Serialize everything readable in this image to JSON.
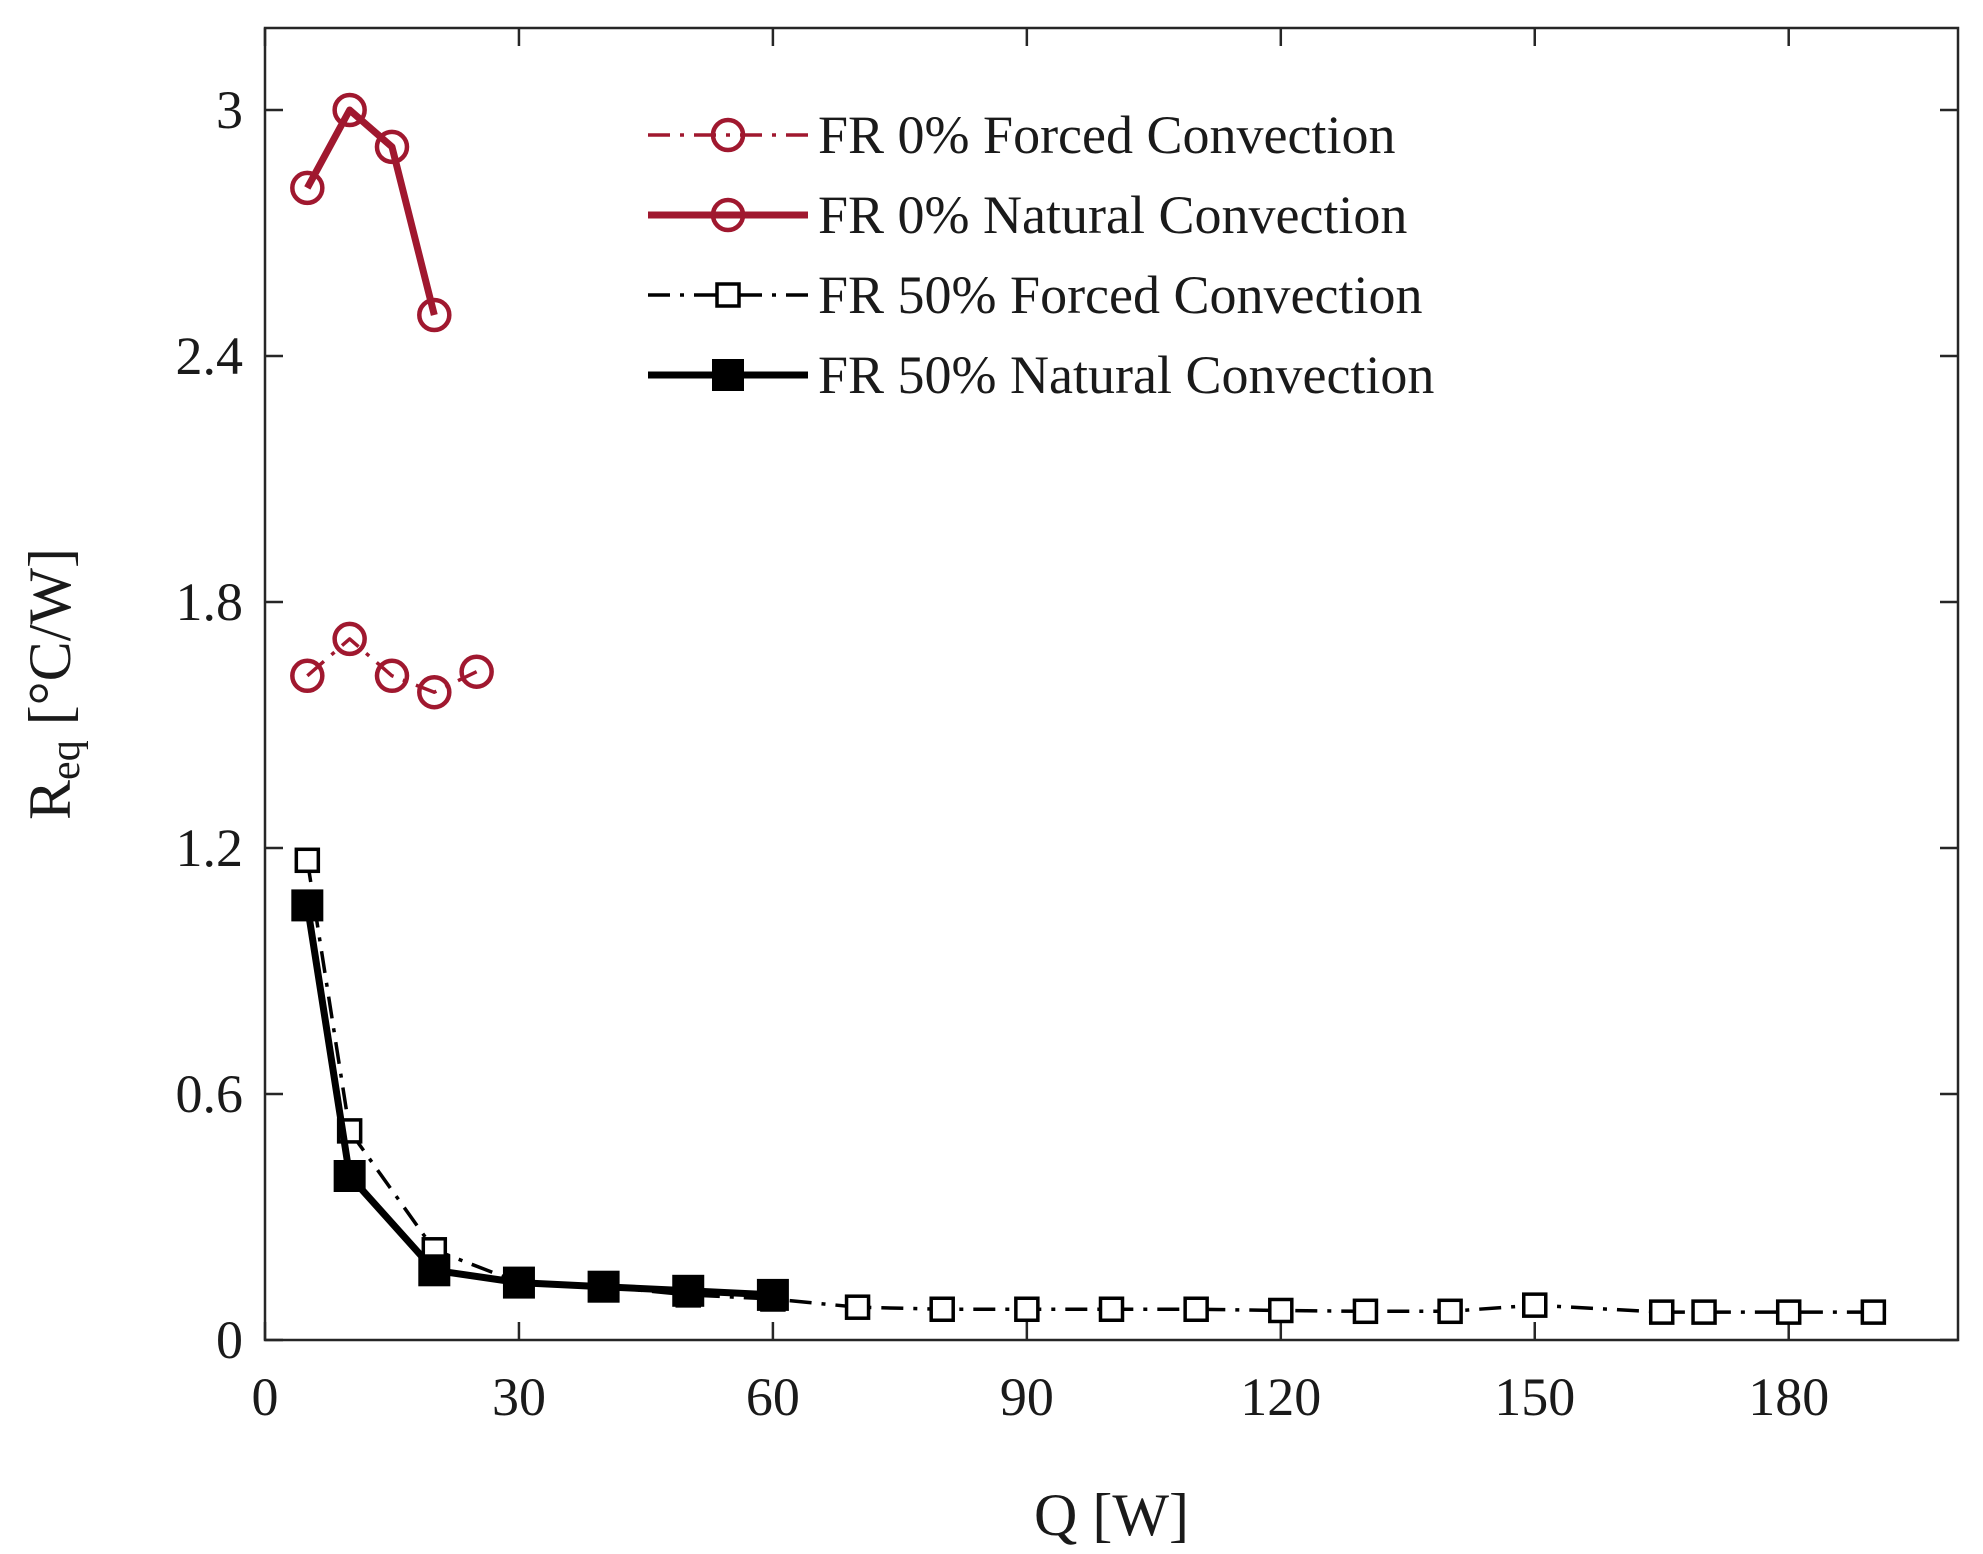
{
  "chart_data": {
    "type": "line",
    "title": "",
    "xlabel": "Q [W]",
    "ylabel": {
      "main": "R",
      "subscript": "eq",
      "unit": " [°C/W]"
    },
    "xlim": [
      0,
      200
    ],
    "ylim": [
      0,
      3.2
    ],
    "xticks": [
      0,
      30,
      60,
      90,
      120,
      150,
      180
    ],
    "xtick_labels": [
      "0",
      "30",
      "60",
      "90",
      "120",
      "150",
      "180"
    ],
    "yticks": [
      0,
      0.6,
      1.2,
      1.8,
      2.4,
      3.0
    ],
    "ytick_labels": [
      "0",
      "0.6",
      "1.2",
      "1.8",
      "2.4",
      "3"
    ],
    "grid": false,
    "legend_position": "top",
    "series": [
      {
        "name": "FR 0% Forced Convection",
        "color": "#a0182f",
        "line_style": "dashdot",
        "line_weight": "thin",
        "marker": "circle-open",
        "x": [
          5,
          10,
          15,
          20,
          25
        ],
        "y": [
          1.62,
          1.71,
          1.62,
          1.58,
          1.63
        ]
      },
      {
        "name": "FR 0% Natural Convection",
        "color": "#a0182f",
        "line_style": "solid",
        "line_weight": "thick",
        "marker": "circle-open",
        "x": [
          5,
          10,
          15,
          20
        ],
        "y": [
          2.81,
          3.0,
          2.91,
          2.5
        ]
      },
      {
        "name": "FR 50% Forced Convection",
        "color": "#000000",
        "line_style": "dashdot",
        "line_weight": "thin",
        "marker": "square-open",
        "x": [
          5,
          10,
          20,
          30,
          40,
          50,
          60,
          70,
          80,
          90,
          100,
          110,
          120,
          130,
          140,
          150,
          165,
          170,
          180,
          190
        ],
        "y": [
          1.17,
          0.51,
          0.22,
          0.14,
          0.13,
          0.11,
          0.1,
          0.08,
          0.075,
          0.075,
          0.075,
          0.075,
          0.072,
          0.07,
          0.07,
          0.085,
          0.068,
          0.068,
          0.068,
          0.068
        ]
      },
      {
        "name": "FR 50% Natural Convection",
        "color": "#000000",
        "line_style": "solid",
        "line_weight": "thick",
        "marker": "square-filled",
        "x": [
          5,
          10,
          20,
          30,
          40,
          50,
          60
        ],
        "y": [
          1.06,
          0.4,
          0.17,
          0.14,
          0.13,
          0.12,
          0.11
        ]
      }
    ]
  }
}
